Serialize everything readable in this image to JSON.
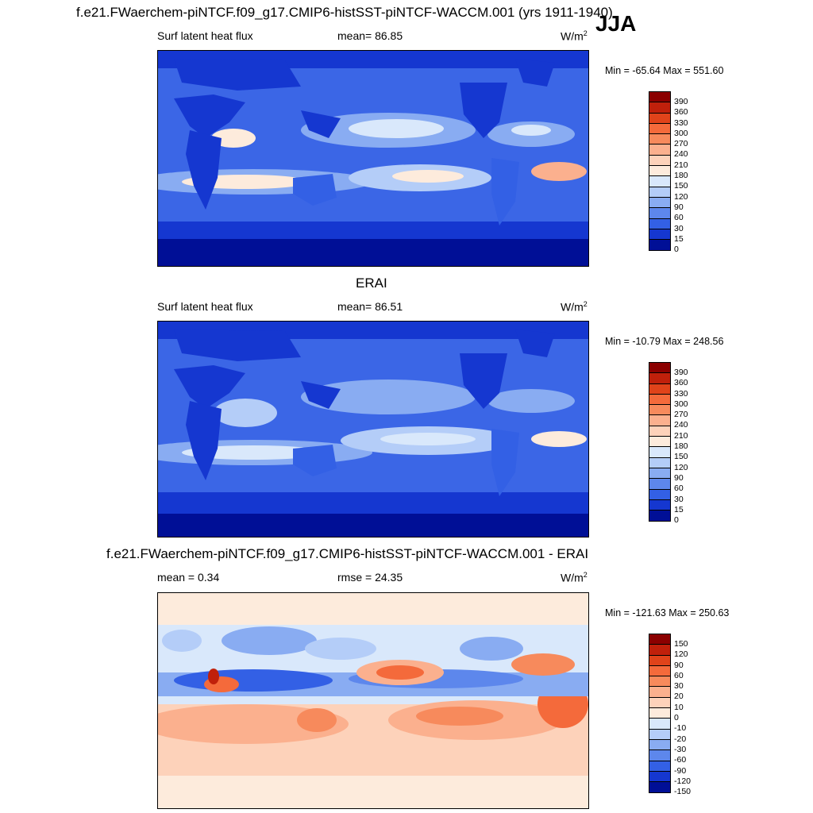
{
  "header": {
    "main_title": "f.e21.FWaerchem-piNTCF.f09_g17.CMIP6-histSST-piNTCF-WACCM.001 (yrs 1911-1940)",
    "season": "JJA"
  },
  "panels": [
    {
      "title": "",
      "variable": "Surf latent heat flux",
      "mean_text": "mean=  86.85",
      "units": "W/m",
      "units_sup": "2",
      "minmax": "Min = -65.64 Max = 551.60",
      "levels": [
        "390",
        "360",
        "330",
        "300",
        "270",
        "240",
        "210",
        "180",
        "150",
        "120",
        "90",
        "60",
        "30",
        "15",
        "0"
      ]
    },
    {
      "title": "ERAI",
      "variable": "Surf latent heat flux",
      "mean_text": "mean=  86.51",
      "units": "W/m",
      "units_sup": "2",
      "minmax": "Min = -10.79 Max = 248.56",
      "levels": [
        "390",
        "360",
        "330",
        "300",
        "270",
        "240",
        "210",
        "180",
        "150",
        "120",
        "90",
        "60",
        "30",
        "15",
        "0"
      ]
    },
    {
      "title": "f.e21.FWaerchem-piNTCF.f09_g17.CMIP6-histSST-piNTCF-WACCM.001 - ERAI",
      "variable": "",
      "mean_text": "mean =   0.34",
      "rmse_text": "rmse =  24.35",
      "units": "W/m",
      "units_sup": "2",
      "minmax": "Min = -121.63 Max = 250.63",
      "levels": [
        "150",
        "120",
        "90",
        "60",
        "30",
        "20",
        "10",
        "0",
        "-10",
        "-20",
        "-30",
        "-60",
        "-90",
        "-120",
        "-150"
      ]
    }
  ],
  "colors": {
    "abs_scale": [
      "#8b0000",
      "#c0200b",
      "#e0431a",
      "#f46a3b",
      "#f78a5c",
      "#fbb08e",
      "#fdd2ba",
      "#fdebdc",
      "#d9e8fb",
      "#b4cdf8",
      "#89acf2",
      "#5d87ec",
      "#3360e5",
      "#1537d0",
      "#000f96"
    ],
    "diff_scale": [
      "#8b0000",
      "#c0200b",
      "#e0431a",
      "#f46a3b",
      "#f78a5c",
      "#fbb08e",
      "#fdd2ba",
      "#fdebdc",
      "#d9e8fb",
      "#b4cdf8",
      "#89acf2",
      "#5d87ec",
      "#3360e5",
      "#1537d0",
      "#000f96"
    ]
  }
}
